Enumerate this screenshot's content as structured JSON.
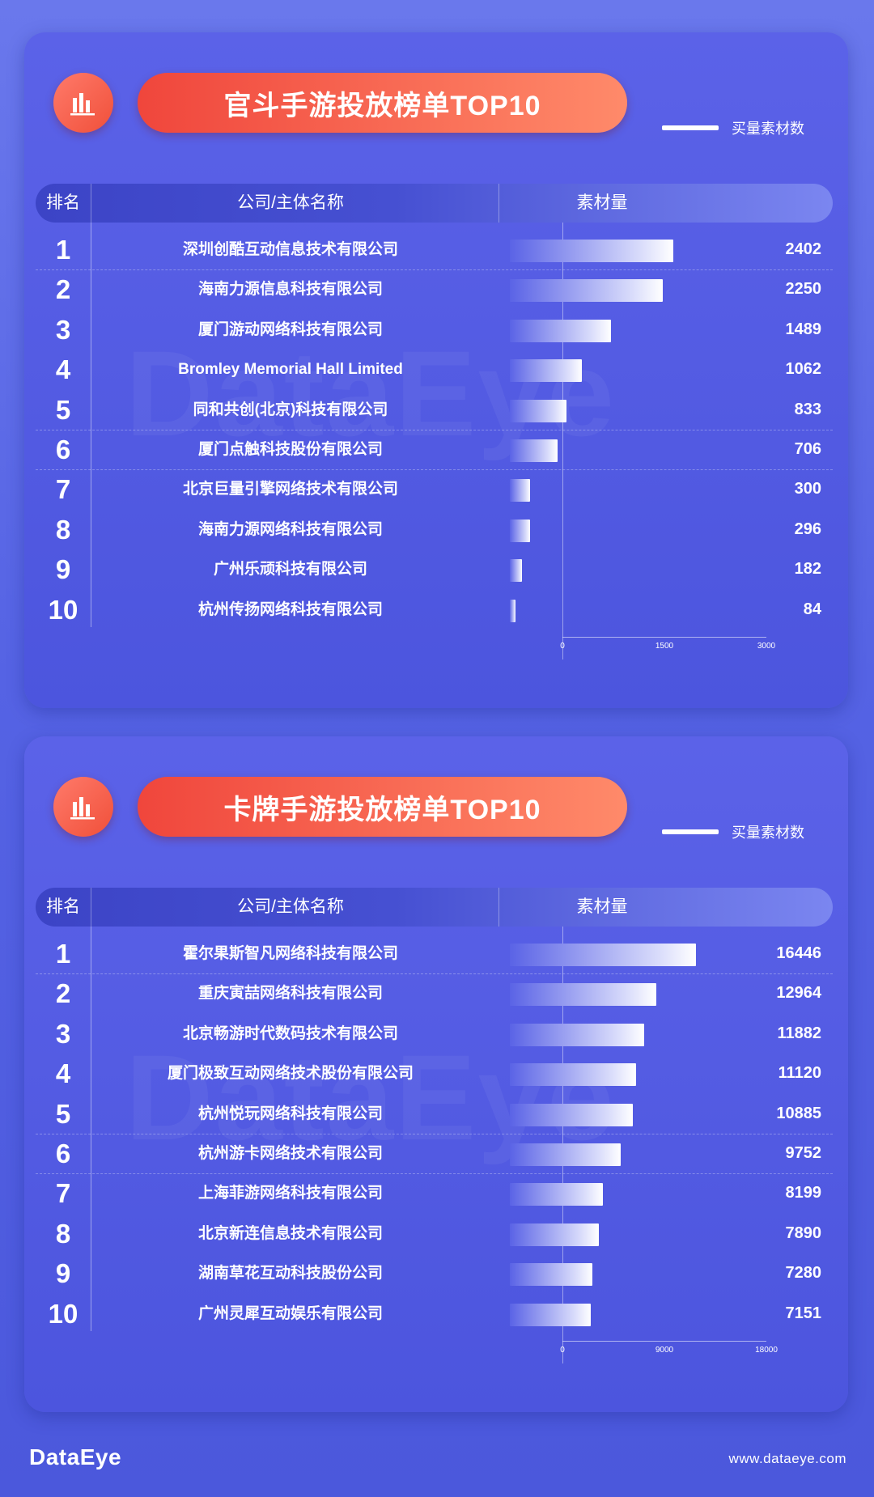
{
  "footer": {
    "brand": "DataEye",
    "website": "www.dataeye.com"
  },
  "sections": [
    {
      "watermark": "DataEye",
      "title": "官斗手游投放榜单TOP10",
      "legend_label": "买量素材数",
      "header": {
        "rank": "排名",
        "company": "公司/主体名称",
        "amount": "素材量"
      }
    },
    {
      "watermark": "DataEye",
      "title": "卡牌手游投放榜单TOP10",
      "legend_label": "买量素材数",
      "header": {
        "rank": "排名",
        "company": "公司/主体名称",
        "amount": "素材量"
      }
    }
  ],
  "chart_data": [
    {
      "type": "bar",
      "orientation": "horizontal",
      "title": "官斗手游投放榜单TOP10",
      "ranks": [
        "1",
        "2",
        "3",
        "4",
        "5",
        "6",
        "7",
        "8",
        "9",
        "10"
      ],
      "categories": [
        "深圳创酷互动信息技术有限公司",
        "海南力源信息科技有限公司",
        "厦门游动网络科技有限公司",
        "Bromley Memorial Hall Limited",
        "同和共创(北京)科技有限公司",
        "厦门点触科技股份有限公司",
        "北京巨量引擎网络技术有限公司",
        "海南力源网络科技有限公司",
        "广州乐顽科技有限公司",
        "杭州传扬网络科技有限公司"
      ],
      "series": [
        {
          "name": "买量素材数",
          "values": [
            2402,
            2250,
            1489,
            1062,
            833,
            706,
            300,
            296,
            182,
            84
          ]
        }
      ],
      "xlim": [
        0,
        3000
      ],
      "xticks": [
        0,
        1500,
        3000
      ]
    },
    {
      "type": "bar",
      "orientation": "horizontal",
      "title": "卡牌手游投放榜单TOP10",
      "ranks": [
        "1",
        "2",
        "3",
        "4",
        "5",
        "6",
        "7",
        "8",
        "9",
        "10"
      ],
      "categories": [
        "霍尔果斯智凡网络科技有限公司",
        "重庆寅喆网络科技有限公司",
        "北京畅游时代数码技术有限公司",
        "厦门极致互动网络技术股份有限公司",
        "杭州悦玩网络科技有限公司",
        "杭州游卡网络技术有限公司",
        "上海菲游网络科技有限公司",
        "北京新连信息技术有限公司",
        "湖南草花互动科技股份公司",
        "广州灵犀互动娱乐有限公司"
      ],
      "series": [
        {
          "name": "买量素材数",
          "values": [
            16446,
            12964,
            11882,
            11120,
            10885,
            9752,
            8199,
            7890,
            7280,
            7151
          ]
        }
      ],
      "xlim": [
        0,
        18000
      ],
      "xticks": [
        0,
        9000,
        18000
      ]
    }
  ]
}
